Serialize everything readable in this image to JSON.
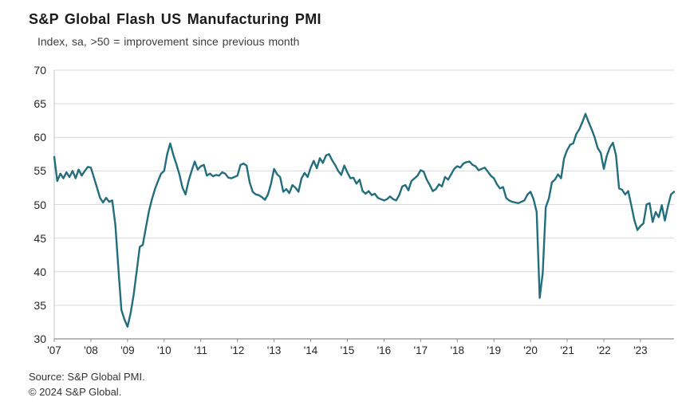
{
  "header": {
    "title": "S&P Global Flash US Manufacturing PMI",
    "subtitle": "Index, sa, >50 = improvement  since previous  month"
  },
  "footer": {
    "source_line1": "Source: S&P Global PMI.",
    "source_line2": "© 2024 S&P Global."
  },
  "chart_data": {
    "type": "line",
    "title": "S&P Global Flash US Manufacturing PMI",
    "subtitle": "Index, sa, >50 = improvement since previous month",
    "frequency": "monthly",
    "x_start": "2007-01",
    "x_end": "2023-12",
    "ylim": [
      30,
      70
    ],
    "y_ticks": [
      30,
      35,
      40,
      45,
      50,
      55,
      60,
      65,
      70
    ],
    "x_tick_labels": [
      "'07",
      "'08",
      "'09",
      "'10",
      "'11",
      "'12",
      "'13",
      "'14",
      "'15",
      "'16",
      "'17",
      "'18",
      "'19",
      "'20",
      "'21",
      "'22",
      "'23"
    ],
    "grid": true,
    "legend_position": "none",
    "line_color": "#236e7d",
    "grid_color": "#d9d9d9",
    "axis_color": "#8c8c8c",
    "border_color": "#c4c4c4",
    "series": [
      {
        "name": "US Manufacturing PMI",
        "values": [
          57.1,
          53.5,
          54.6,
          53.9,
          54.8,
          54.1,
          55.0,
          53.9,
          55.2,
          54.3,
          55.0,
          55.6,
          55.5,
          54.0,
          52.5,
          51.0,
          50.3,
          51.0,
          50.4,
          50.6,
          47.0,
          40.5,
          34.3,
          32.9,
          31.8,
          33.8,
          36.5,
          40.0,
          43.7,
          44.0,
          46.5,
          49.0,
          50.8,
          52.3,
          53.5,
          54.6,
          55.0,
          57.5,
          59.1,
          57.4,
          56.0,
          54.5,
          52.5,
          51.5,
          53.5,
          55.0,
          56.4,
          55.2,
          55.7,
          55.9,
          54.3,
          54.6,
          54.2,
          54.4,
          54.3,
          54.8,
          54.6,
          54.0,
          53.9,
          54.1,
          54.3,
          55.9,
          56.1,
          55.8,
          53.3,
          51.9,
          51.5,
          51.4,
          51.1,
          50.7,
          51.5,
          53.1,
          55.3,
          54.5,
          54.1,
          51.9,
          52.3,
          51.7,
          52.9,
          52.5,
          51.9,
          53.9,
          54.7,
          54.1,
          55.5,
          56.5,
          55.4,
          56.9,
          56.2,
          57.3,
          57.5,
          56.6,
          55.9,
          55.0,
          54.4,
          55.8,
          54.8,
          53.9,
          54.0,
          53.1,
          53.7,
          52.0,
          51.6,
          52.0,
          51.4,
          51.6,
          51.0,
          50.8,
          50.6,
          50.8,
          51.2,
          50.8,
          50.6,
          51.4,
          52.7,
          52.9,
          52.1,
          53.5,
          53.9,
          54.3,
          55.1,
          54.9,
          53.7,
          52.9,
          52.0,
          52.3,
          53.0,
          52.7,
          54.1,
          53.7,
          54.5,
          55.3,
          55.7,
          55.5,
          56.1,
          56.3,
          56.4,
          55.9,
          55.7,
          55.1,
          55.3,
          55.5,
          54.9,
          54.3,
          53.9,
          53.0,
          52.4,
          52.6,
          51.0,
          50.6,
          50.4,
          50.3,
          50.2,
          50.4,
          50.6,
          51.5,
          51.9,
          50.8,
          48.9,
          36.1,
          39.8,
          49.6,
          50.9,
          53.3,
          53.7,
          54.5,
          53.9,
          56.9,
          58.1,
          58.9,
          59.1,
          60.5,
          61.2,
          62.3,
          63.5,
          62.3,
          61.2,
          60.0,
          58.4,
          57.7,
          55.3,
          57.3,
          58.5,
          59.2,
          57.3,
          52.4,
          52.2,
          51.5,
          52.0,
          49.9,
          47.7,
          46.2,
          46.8,
          47.2,
          50.0,
          50.2,
          47.4,
          48.9,
          48.1,
          49.9,
          47.6,
          49.7,
          51.5,
          51.9
        ]
      }
    ]
  }
}
